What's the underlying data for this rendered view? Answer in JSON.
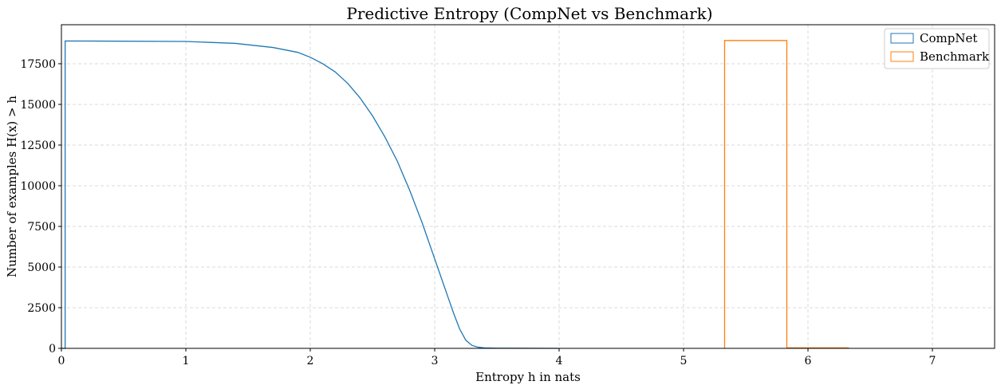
{
  "chart_data": {
    "type": "line",
    "title": "Predictive Entropy (CompNet vs Benchmark)",
    "xlabel": "Entropy h in nats",
    "ylabel": "Number of examples H(x) > h",
    "xlim": [
      0,
      7.5
    ],
    "ylim": [
      0,
      19900
    ],
    "xticks": [
      0,
      1,
      2,
      3,
      4,
      5,
      6,
      7
    ],
    "yticks": [
      0,
      2500,
      5000,
      7500,
      10000,
      12500,
      15000,
      17500
    ],
    "grid": true,
    "legend_position": "top-right",
    "series": [
      {
        "name": "CompNet",
        "color": "#1f77b4",
        "style": "step-outline",
        "x": [
          0.0,
          0.03,
          0.03,
          1.0,
          1.4,
          1.7,
          1.9,
          2.0,
          2.1,
          2.2,
          2.3,
          2.4,
          2.5,
          2.6,
          2.7,
          2.8,
          2.9,
          3.0,
          3.05,
          3.1,
          3.15,
          3.2,
          3.25,
          3.3,
          3.35,
          3.4,
          3.5,
          4.0
        ],
        "y": [
          0,
          0,
          18900,
          18870,
          18750,
          18500,
          18200,
          17900,
          17500,
          17000,
          16300,
          15400,
          14300,
          13000,
          11500,
          9700,
          7700,
          5500,
          4400,
          3300,
          2200,
          1200,
          500,
          180,
          70,
          30,
          10,
          0
        ]
      },
      {
        "name": "Benchmark",
        "color": "#ff7f0e",
        "style": "step-outline",
        "x": [
          5.33,
          5.33,
          5.83,
          5.83,
          6.33
        ],
        "y": [
          0,
          18930,
          18930,
          30,
          30
        ]
      }
    ]
  }
}
